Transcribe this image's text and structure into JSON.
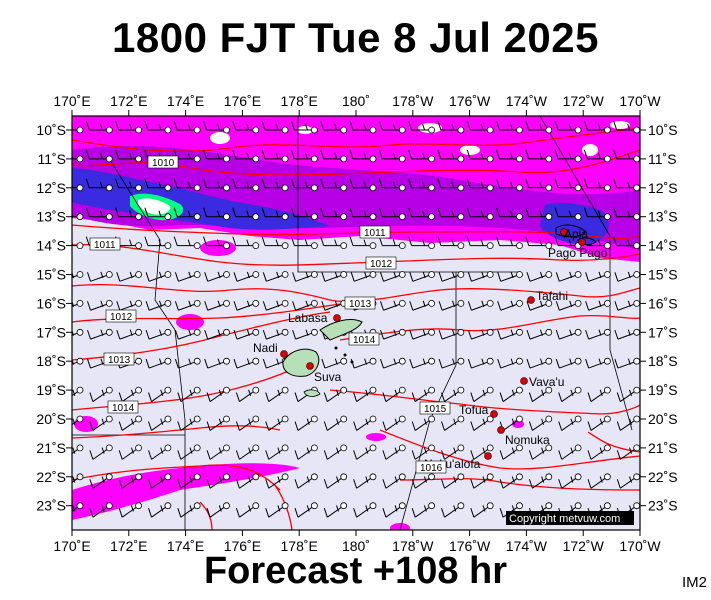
{
  "header": {
    "title": "1800 FJT Tue 8 Jul 2025"
  },
  "footer": {
    "forecast": "Forecast +108 hr",
    "image_code": "IM2"
  },
  "map": {
    "top_ticks": [
      "170˚E",
      "172˚E",
      "174˚E",
      "176˚E",
      "178˚E",
      "180˚",
      "178˚W",
      "176˚W",
      "174˚W",
      "172˚W",
      "170˚W"
    ],
    "bottom_ticks": [
      "170˚E",
      "172˚E",
      "174˚E",
      "176˚E",
      "178˚E",
      "180˚",
      "178˚W",
      "176˚W",
      "174˚W",
      "172˚W",
      "170˚W"
    ],
    "left_ticks": [
      "10˚S",
      "11˚S",
      "12˚S",
      "13˚S",
      "14˚S",
      "15˚S",
      "16˚S",
      "17˚S",
      "18˚S",
      "19˚S",
      "20˚S",
      "21˚S",
      "22˚S",
      "23˚S"
    ],
    "right_ticks": [
      "10˚S",
      "11˚S",
      "12˚S",
      "13˚S",
      "14˚S",
      "15˚S",
      "16˚S",
      "17˚S",
      "18˚S",
      "19˚S",
      "20˚S",
      "21˚S",
      "22˚S",
      "23˚S"
    ],
    "cities": [
      {
        "name": "Apia"
      },
      {
        "name": "Pago Pago"
      },
      {
        "name": "Tafahi"
      },
      {
        "name": "Labasa"
      },
      {
        "name": "Nadi"
      },
      {
        "name": "Suva"
      },
      {
        "name": "Vava'u"
      },
      {
        "name": "Tofua"
      },
      {
        "name": "Nomuka"
      },
      {
        "name": "Nuku'alofa"
      }
    ],
    "isobar_labels": [
      "1010",
      "1011",
      "1011",
      "1012",
      "1012",
      "1013",
      "1013",
      "1014",
      "1014",
      "1015",
      "1016"
    ],
    "copyright": "Copyright metvuw.com",
    "colors": {
      "background": "#e8e8f8",
      "rain_magenta": "#ff00ff",
      "rain_purple": "#cc00ee",
      "rain_blue": "#2020ff",
      "rain_green": "#00ff80",
      "isobar": "#ff0000"
    }
  }
}
